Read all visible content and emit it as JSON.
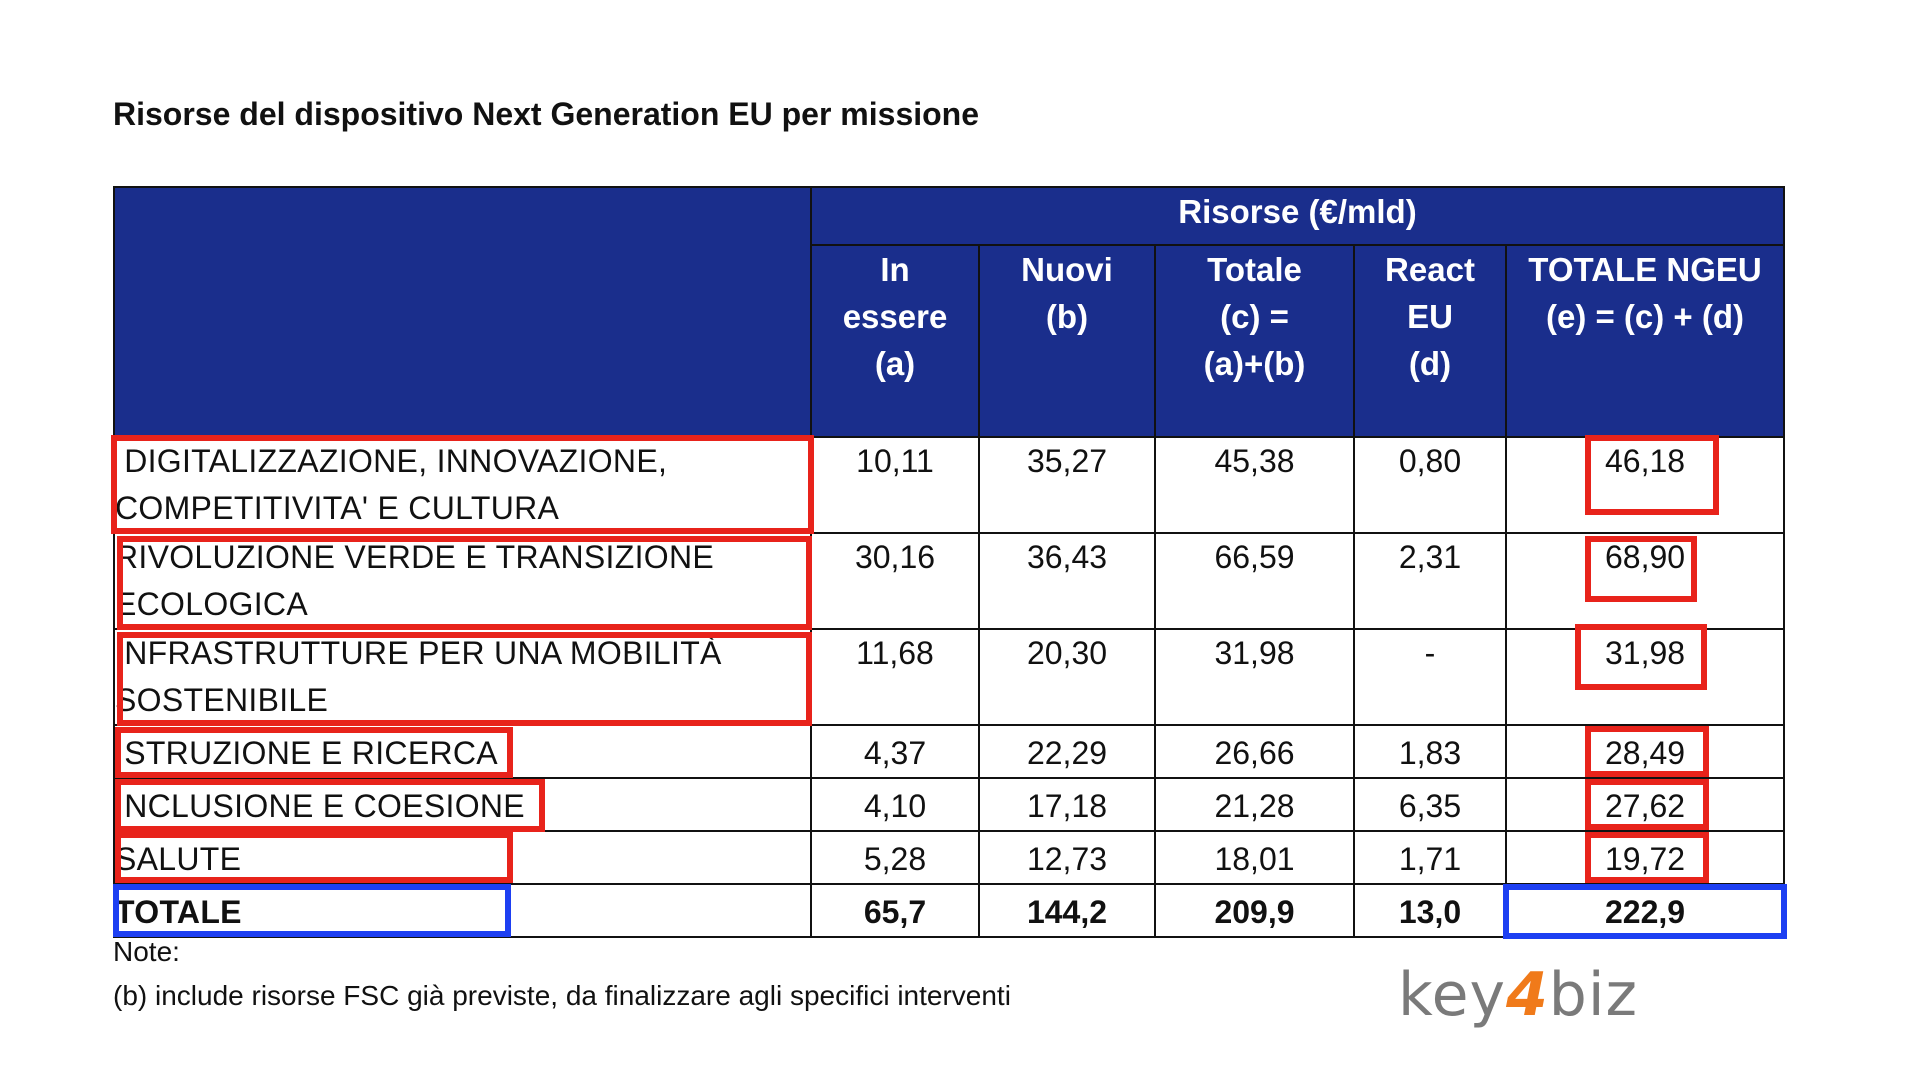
{
  "title": "Risorse del dispositivo Next Generation EU per missione",
  "header": {
    "group": "Risorse (€/mld)",
    "columns": [
      {
        "line1": "In",
        "line2": "essere",
        "line3": "(a)"
      },
      {
        "line1": "Nuovi",
        "line2": "(b)"
      },
      {
        "line1": "Totale",
        "line2": "(c) =",
        "line3": "(a)+(b)"
      },
      {
        "line1": "React",
        "line2": "EU",
        "line3": "(d)"
      },
      {
        "line1": "TOTALE NGEU",
        "line2": "(e) = (c) + (d)"
      }
    ]
  },
  "rows": [
    {
      "label_l1": " DIGITALIZZAZIONE, INNOVAZIONE,",
      "label_l2": "COMPETITIVITA' E CULTURA",
      "a": "10,11",
      "b": "35,27",
      "c": "45,38",
      "d": "0,80",
      "e": "46,18"
    },
    {
      "label_l1": "RIVOLUZIONE VERDE E TRANSIZIONE",
      "label_l2": "ECOLOGICA",
      "a": "30,16",
      "b": "36,43",
      "c": "66,59",
      "d": "2,31",
      "e": "68,90"
    },
    {
      "label_l1": "INFRASTRUTTURE PER UNA MOBILITÀ",
      "label_l2": "SOSTENIBILE",
      "a": "11,68",
      "b": "20,30",
      "c": "31,98",
      "d": "-",
      "e": "31,98"
    },
    {
      "label_l1": "ISTRUZIONE E RICERCA",
      "a": "4,37",
      "b": "22,29",
      "c": "26,66",
      "d": "1,83",
      "e": "28,49"
    },
    {
      "label_l1": "INCLUSIONE E COESIONE",
      "a": "4,10",
      "b": "17,18",
      "c": "21,28",
      "d": "6,35",
      "e": "27,62"
    },
    {
      "label_l1": "SALUTE",
      "a": "5,28",
      "b": "12,73",
      "c": "18,01",
      "d": "1,71",
      "e": "19,72"
    }
  ],
  "total": {
    "label": "TOTALE",
    "a": "65,7",
    "b": "144,2",
    "c": "209,9",
    "d": "13,0",
    "e": "222,9"
  },
  "notes": {
    "heading": "Note:",
    "line": "(b) include risorse FSC già previste, da finalizzare agli specifici interventi"
  },
  "logo": {
    "part1": "key",
    "part2": "4",
    "part3": "biz"
  },
  "colors": {
    "header_bg": "#1a2e8c",
    "highlight_red": "#e8231b",
    "highlight_blue": "#1d3ff2",
    "logo_accent": "#f07a1a"
  }
}
